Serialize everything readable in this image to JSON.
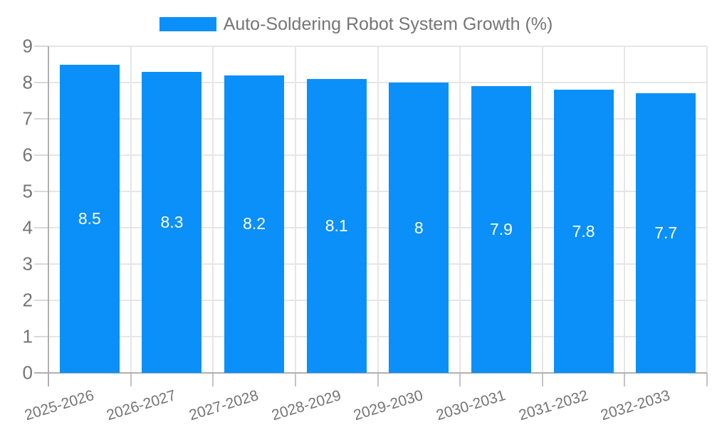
{
  "chart_data": {
    "type": "bar",
    "title": "Auto-Soldering Robot System Growth (%)",
    "categories": [
      "2025-2026",
      "2026-2027",
      "2027-2028",
      "2028-2029",
      "2029-2030",
      "2030-2031",
      "2031-2032",
      "2032-2033"
    ],
    "values": [
      8.5,
      8.3,
      8.2,
      8.1,
      8,
      7.9,
      7.8,
      7.7
    ],
    "value_labels": [
      "8.5",
      "8.3",
      "8.2",
      "8.1",
      "8",
      "7.9",
      "7.8",
      "7.7"
    ],
    "xlabel": "",
    "ylabel": "",
    "ylim": [
      0,
      9
    ],
    "ytick_step": 1,
    "yticks": [
      "0",
      "1",
      "2",
      "3",
      "4",
      "5",
      "6",
      "7",
      "8",
      "9"
    ],
    "grid": true,
    "legend_position": "top-center",
    "value_label_position": "inside-center",
    "colors": {
      "bar": "#0a90f8",
      "value_label": "#ffffff",
      "axis_text": "#757575",
      "legend_text": "#757575",
      "gridline": "#e6e6e6",
      "axis_line": "#b0b0b0",
      "y_tick": "#d9d9d9",
      "x_tick": "#c4c4c4",
      "background": "#ffffff"
    }
  }
}
